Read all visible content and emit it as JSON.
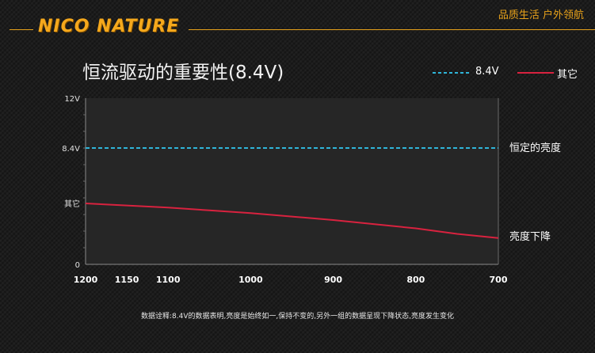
{
  "header": {
    "brand": "NICO NATURE",
    "slogan": "品质生活 户外领航"
  },
  "colors": {
    "accent": "#e8a21a",
    "series_constant": "#2fb5d9",
    "series_other": "#d8223f"
  },
  "footnote": "数据诠释:8.4V的数据表明,亮度是始终如一,保持不变的,另外一组的数据呈现下降状态,亮度发生变化",
  "chart_data": {
    "type": "line",
    "title": "恒流驱动的重要性(8.4V)",
    "xlabel": "",
    "ylabel": "",
    "x": [
      1200,
      1150,
      1100,
      1050,
      1000,
      950,
      900,
      850,
      800,
      750,
      700
    ],
    "x_tick_labels": [
      "1200",
      "1150",
      "1100",
      "1000",
      "900",
      "800",
      "700"
    ],
    "x_tick_values": [
      1200,
      1150,
      1100,
      1000,
      900,
      800,
      700
    ],
    "xlim": [
      1200,
      700
    ],
    "y_tick_labels": [
      "12V",
      "8.4V",
      "其它",
      "0"
    ],
    "y_tick_values": [
      12,
      8.4,
      4.4,
      0
    ],
    "ylim": [
      0,
      12
    ],
    "grid": false,
    "legend": "top-right",
    "series": [
      {
        "name": "8.4V",
        "style": "dashed",
        "values": [
          8.4,
          8.4,
          8.4,
          8.4,
          8.4,
          8.4,
          8.4,
          8.4,
          8.4,
          8.4,
          8.4
        ],
        "annotation": "恒定的亮度"
      },
      {
        "name": "其它",
        "style": "solid",
        "values": [
          4.4,
          4.25,
          4.1,
          3.9,
          3.7,
          3.45,
          3.2,
          2.9,
          2.6,
          2.2,
          1.9
        ],
        "annotation": "亮度下降"
      }
    ]
  }
}
